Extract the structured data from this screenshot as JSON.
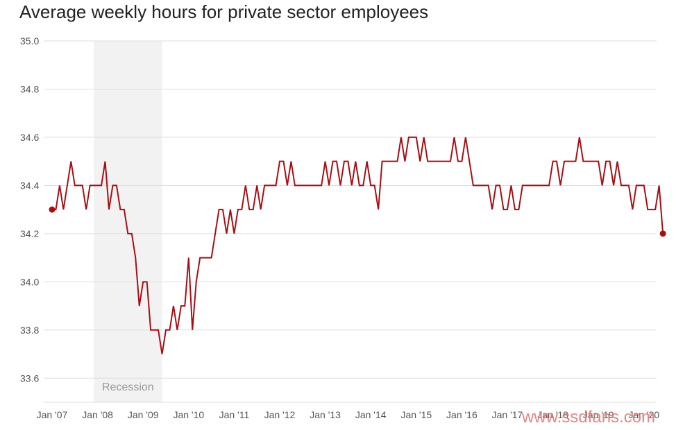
{
  "chart_data": {
    "type": "line",
    "title": "Average weekly hours for private sector employees",
    "xlabel": "",
    "ylabel": "",
    "ylim": [
      33.5,
      35.0
    ],
    "yticks": [
      "33.6",
      "33.8",
      "34.0",
      "34.2",
      "34.4",
      "34.6",
      "34.8",
      "35.0"
    ],
    "xticks": [
      "Jan '07",
      "Jan '08",
      "Jan '09",
      "Jan '10",
      "Jan '11",
      "Jan '12",
      "Jan '13",
      "Jan '14",
      "Jan '15",
      "Jan '16",
      "Jan '17",
      "Jan '18",
      "Jan '19",
      "Jan '20"
    ],
    "grid": true,
    "annotation": {
      "label": "Recession",
      "start": "2007-12",
      "end": "2009-06"
    },
    "series": [
      {
        "start": "2007-01",
        "frequency": "monthly",
        "color": "#a50f15",
        "values": [
          34.3,
          34.3,
          34.4,
          34.3,
          34.4,
          34.5,
          34.4,
          34.4,
          34.4,
          34.3,
          34.4,
          34.4,
          34.4,
          34.4,
          34.5,
          34.3,
          34.4,
          34.4,
          34.3,
          34.3,
          34.2,
          34.2,
          34.1,
          33.9,
          34.0,
          34.0,
          33.8,
          33.8,
          33.8,
          33.7,
          33.8,
          33.8,
          33.9,
          33.8,
          33.9,
          33.9,
          34.1,
          33.8,
          34.0,
          34.1,
          34.1,
          34.1,
          34.1,
          34.2,
          34.3,
          34.3,
          34.2,
          34.3,
          34.2,
          34.3,
          34.3,
          34.4,
          34.3,
          34.3,
          34.4,
          34.3,
          34.4,
          34.4,
          34.4,
          34.4,
          34.5,
          34.5,
          34.4,
          34.5,
          34.4,
          34.4,
          34.4,
          34.4,
          34.4,
          34.4,
          34.4,
          34.4,
          34.5,
          34.4,
          34.5,
          34.5,
          34.4,
          34.5,
          34.5,
          34.4,
          34.5,
          34.4,
          34.4,
          34.5,
          34.4,
          34.4,
          34.3,
          34.5,
          34.5,
          34.5,
          34.5,
          34.5,
          34.6,
          34.5,
          34.6,
          34.6,
          34.6,
          34.5,
          34.6,
          34.5,
          34.5,
          34.5,
          34.5,
          34.5,
          34.5,
          34.5,
          34.6,
          34.5,
          34.5,
          34.6,
          34.5,
          34.4,
          34.4,
          34.4,
          34.4,
          34.4,
          34.3,
          34.4,
          34.4,
          34.3,
          34.3,
          34.4,
          34.3,
          34.3,
          34.4,
          34.4,
          34.4,
          34.4,
          34.4,
          34.4,
          34.4,
          34.4,
          34.5,
          34.5,
          34.4,
          34.5,
          34.5,
          34.5,
          34.5,
          34.6,
          34.5,
          34.5,
          34.5,
          34.5,
          34.5,
          34.4,
          34.5,
          34.5,
          34.4,
          34.5,
          34.4,
          34.4,
          34.4,
          34.3,
          34.4,
          34.4,
          34.4,
          34.3,
          34.3,
          34.3,
          34.4,
          34.2
        ]
      }
    ]
  },
  "watermark": "www.ssdfans.com"
}
